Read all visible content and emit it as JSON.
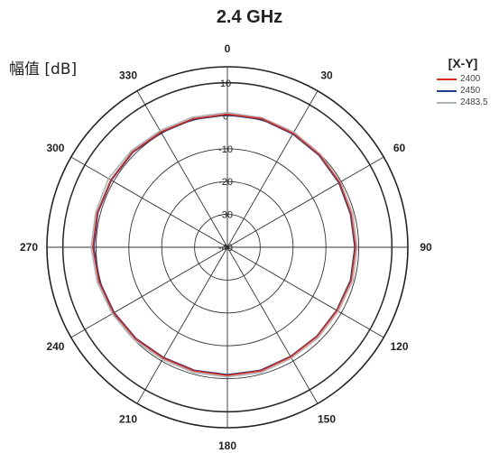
{
  "chart_data": {
    "type": "polar-line",
    "title": "2.4 GHz",
    "r_axis_label": "幅值 [dB]",
    "r_range": [
      -40,
      10
    ],
    "r_ticks": [
      10,
      0,
      -10,
      -20,
      -30,
      -40
    ],
    "angle_ticks": [
      0,
      30,
      60,
      90,
      120,
      150,
      180,
      210,
      240,
      270,
      300,
      330
    ],
    "angle_direction": "clockwise",
    "angle_zero": "top",
    "legend_title": "[X-Y]",
    "legend_position": "top-right",
    "series": [
      {
        "name": "2400",
        "color": "#d62a1e",
        "angles": [
          0,
          15,
          30,
          45,
          60,
          75,
          90,
          105,
          120,
          135,
          150,
          165,
          180,
          195,
          210,
          225,
          240,
          255,
          270,
          285,
          300,
          315,
          330,
          345
        ],
        "values": [
          0.5,
          0.5,
          0,
          -0.3,
          -0.6,
          -1,
          -1,
          -1,
          -1.5,
          -1.5,
          -1.5,
          -1,
          -1,
          -1,
          -1,
          -0.5,
          0,
          0.5,
          1,
          1,
          1,
          1,
          0.5,
          0.5
        ]
      },
      {
        "name": "2450",
        "color": "#1d3f86",
        "angles": [
          0,
          15,
          30,
          45,
          60,
          75,
          90,
          105,
          120,
          135,
          150,
          165,
          180,
          195,
          210,
          225,
          240,
          255,
          270,
          285,
          300,
          315,
          330,
          345
        ],
        "values": [
          0.3,
          0.3,
          -0.2,
          -0.5,
          -0.8,
          -1.2,
          -1.2,
          -1.2,
          -1.6,
          -1.6,
          -1.6,
          -1.2,
          -1.2,
          -1.2,
          -1.2,
          -0.7,
          -0.2,
          0.3,
          0.7,
          0.8,
          0.8,
          0.8,
          0.3,
          0.3
        ]
      },
      {
        "name": "2483.5",
        "color": "#aeb4bc",
        "angles": [
          0,
          15,
          30,
          45,
          60,
          75,
          90,
          105,
          120,
          135,
          150,
          165,
          180,
          195,
          210,
          225,
          240,
          255,
          270,
          285,
          300,
          315,
          330,
          345
        ],
        "values": [
          1,
          0.8,
          0.5,
          0,
          -0.3,
          -0.5,
          -0.5,
          -0.5,
          -1,
          -1,
          -1,
          -0.5,
          -0.5,
          -0.5,
          -0.5,
          0,
          0.5,
          1,
          1.5,
          1.5,
          1.8,
          1.5,
          1,
          1
        ]
      }
    ]
  }
}
